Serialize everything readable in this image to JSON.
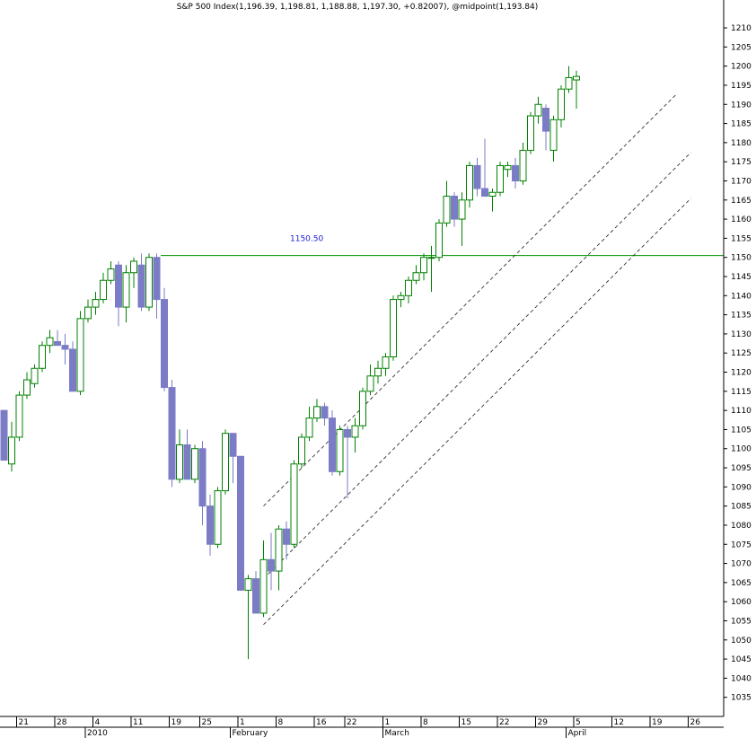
{
  "chart_data": {
    "type": "candlestick",
    "title": "S&P 500 Index(1,196.39, 1,198.81, 1,188.88, 1,197.30, +0.82007), @midpoint(1,193.84)",
    "ylim": [
      1030,
      1214
    ],
    "y_ticks": [
      1035,
      1040,
      1045,
      1050,
      1055,
      1060,
      1065,
      1070,
      1075,
      1080,
      1085,
      1090,
      1095,
      1100,
      1105,
      1110,
      1115,
      1120,
      1125,
      1130,
      1135,
      1140,
      1145,
      1150,
      1155,
      1160,
      1165,
      1170,
      1175,
      1180,
      1185,
      1190,
      1195,
      1200,
      1205,
      1210
    ],
    "grid": false,
    "x_tick_labels": [
      "21",
      "28",
      "4",
      "11",
      "19",
      "25",
      "1",
      "8",
      "16",
      "22",
      "1",
      "8",
      "15",
      "22",
      "29",
      "5",
      "12",
      "19",
      "26"
    ],
    "x_tick_slots": [
      2,
      7,
      12,
      17,
      22,
      26,
      31,
      36,
      41,
      45,
      50,
      55,
      60,
      65,
      70,
      75,
      80,
      85,
      90
    ],
    "month_labels": [
      {
        "label": "2010",
        "slot": 11
      },
      {
        "label": "February",
        "slot": 30
      },
      {
        "label": "March",
        "slot": 50
      },
      {
        "label": "April",
        "slot": 74
      }
    ],
    "horizontal_line": {
      "value": 1150.5,
      "label": "1150.50",
      "from_slot": 21
    },
    "channel": {
      "slope_per_slot": 1.99,
      "lines": [
        {
          "slot0": 34,
          "value0": 1085,
          "end_slot": 88
        },
        {
          "slot0": 34,
          "value0": 1066,
          "end_slot": 90
        },
        {
          "slot0": 34,
          "value0": 1054,
          "end_slot": 90
        }
      ]
    },
    "candles": [
      {
        "slot": 0,
        "open": 1110,
        "high": 1110,
        "low": 1097,
        "close": 1097
      },
      {
        "slot": 1,
        "open": 1096,
        "high": 1107,
        "low": 1094,
        "close": 1103
      },
      {
        "slot": 2,
        "open": 1103,
        "high": 1115,
        "low": 1102,
        "close": 1114
      },
      {
        "slot": 3,
        "open": 1114,
        "high": 1120,
        "low": 1113,
        "close": 1118
      },
      {
        "slot": 4,
        "open": 1117,
        "high": 1122,
        "low": 1116,
        "close": 1121
      },
      {
        "slot": 5,
        "open": 1121,
        "high": 1128,
        "low": 1120,
        "close": 1127
      },
      {
        "slot": 6,
        "open": 1127,
        "high": 1131,
        "low": 1125,
        "close": 1129
      },
      {
        "slot": 7,
        "open": 1128,
        "high": 1131,
        "low": 1127,
        "close": 1127
      },
      {
        "slot": 8,
        "open": 1127,
        "high": 1130,
        "low": 1122,
        "close": 1126
      },
      {
        "slot": 9,
        "open": 1126,
        "high": 1128,
        "low": 1115,
        "close": 1115
      },
      {
        "slot": 10,
        "open": 1115,
        "high": 1136,
        "low": 1114,
        "close": 1134
      },
      {
        "slot": 11,
        "open": 1134,
        "high": 1139,
        "low": 1133,
        "close": 1137
      },
      {
        "slot": 12,
        "open": 1137,
        "high": 1141,
        "low": 1135,
        "close": 1139
      },
      {
        "slot": 13,
        "open": 1139,
        "high": 1146,
        "low": 1138,
        "close": 1144
      },
      {
        "slot": 14,
        "open": 1144,
        "high": 1149,
        "low": 1143,
        "close": 1147
      },
      {
        "slot": 15,
        "open": 1148,
        "high": 1149,
        "low": 1132,
        "close": 1137
      },
      {
        "slot": 16,
        "open": 1137,
        "high": 1148,
        "low": 1133,
        "close": 1146
      },
      {
        "slot": 17,
        "open": 1146,
        "high": 1150,
        "low": 1142,
        "close": 1149
      },
      {
        "slot": 18,
        "open": 1148,
        "high": 1151,
        "low": 1136,
        "close": 1137
      },
      {
        "slot": 19,
        "open": 1137,
        "high": 1151,
        "low": 1136,
        "close": 1150
      },
      {
        "slot": 20,
        "open": 1150,
        "high": 1151,
        "low": 1134,
        "close": 1139
      },
      {
        "slot": 21,
        "open": 1139,
        "high": 1142,
        "low": 1115,
        "close": 1116
      },
      {
        "slot": 22,
        "open": 1116,
        "high": 1118,
        "low": 1090,
        "close": 1092
      },
      {
        "slot": 23,
        "open": 1092,
        "high": 1105,
        "low": 1091,
        "close": 1101
      },
      {
        "slot": 24,
        "open": 1101,
        "high": 1105,
        "low": 1092,
        "close": 1092
      },
      {
        "slot": 25,
        "open": 1092,
        "high": 1101,
        "low": 1091,
        "close": 1100
      },
      {
        "slot": 26,
        "open": 1100,
        "high": 1102,
        "low": 1080,
        "close": 1085
      },
      {
        "slot": 27,
        "open": 1085,
        "high": 1088,
        "low": 1072,
        "close": 1075
      },
      {
        "slot": 28,
        "open": 1075,
        "high": 1090,
        "low": 1074,
        "close": 1089
      },
      {
        "slot": 29,
        "open": 1089,
        "high": 1105,
        "low": 1088,
        "close": 1104
      },
      {
        "slot": 30,
        "open": 1104,
        "high": 1104,
        "low": 1091,
        "close": 1098
      },
      {
        "slot": 31,
        "open": 1098,
        "high": 1098,
        "low": 1063,
        "close": 1063
      },
      {
        "slot": 32,
        "open": 1063,
        "high": 1067,
        "low": 1045,
        "close": 1066
      },
      {
        "slot": 33,
        "open": 1066,
        "high": 1068,
        "low": 1057,
        "close": 1057
      },
      {
        "slot": 34,
        "open": 1057,
        "high": 1076,
        "low": 1056,
        "close": 1071
      },
      {
        "slot": 35,
        "open": 1071,
        "high": 1078,
        "low": 1063,
        "close": 1068
      },
      {
        "slot": 36,
        "open": 1068,
        "high": 1080,
        "low": 1063,
        "close": 1079
      },
      {
        "slot": 37,
        "open": 1079,
        "high": 1081,
        "low": 1071,
        "close": 1075
      },
      {
        "slot": 38,
        "open": 1075,
        "high": 1097,
        "low": 1074,
        "close": 1096
      },
      {
        "slot": 39,
        "open": 1096,
        "high": 1104,
        "low": 1095,
        "close": 1103
      },
      {
        "slot": 40,
        "open": 1103,
        "high": 1111,
        "low": 1102,
        "close": 1108
      },
      {
        "slot": 41,
        "open": 1108,
        "high": 1113,
        "low": 1107,
        "close": 1111
      },
      {
        "slot": 42,
        "open": 1111,
        "high": 1112,
        "low": 1106,
        "close": 1108
      },
      {
        "slot": 43,
        "open": 1108,
        "high": 1110,
        "low": 1093,
        "close": 1094
      },
      {
        "slot": 44,
        "open": 1094,
        "high": 1106,
        "low": 1093,
        "close": 1105
      },
      {
        "slot": 45,
        "open": 1105,
        "high": 1106,
        "low": 1087,
        "close": 1103
      },
      {
        "slot": 46,
        "open": 1103,
        "high": 1108,
        "low": 1099,
        "close": 1106
      },
      {
        "slot": 47,
        "open": 1106,
        "high": 1116,
        "low": 1105,
        "close": 1115
      },
      {
        "slot": 48,
        "open": 1115,
        "high": 1122,
        "low": 1114,
        "close": 1119
      },
      {
        "slot": 49,
        "open": 1119,
        "high": 1123,
        "low": 1117,
        "close": 1121
      },
      {
        "slot": 50,
        "open": 1121,
        "high": 1125,
        "low": 1119,
        "close": 1124
      },
      {
        "slot": 51,
        "open": 1124,
        "high": 1140,
        "low": 1123,
        "close": 1139
      },
      {
        "slot": 52,
        "open": 1139,
        "high": 1141,
        "low": 1137,
        "close": 1140
      },
      {
        "slot": 53,
        "open": 1140,
        "high": 1145,
        "low": 1138,
        "close": 1144
      },
      {
        "slot": 54,
        "open": 1144,
        "high": 1148,
        "low": 1143,
        "close": 1146
      },
      {
        "slot": 55,
        "open": 1146,
        "high": 1151,
        "low": 1144,
        "close": 1150
      },
      {
        "slot": 56,
        "open": 1150,
        "high": 1153,
        "low": 1141,
        "close": 1150
      },
      {
        "slot": 57,
        "open": 1150,
        "high": 1160,
        "low": 1149,
        "close": 1159
      },
      {
        "slot": 58,
        "open": 1159,
        "high": 1170,
        "low": 1158,
        "close": 1166
      },
      {
        "slot": 59,
        "open": 1166,
        "high": 1167,
        "low": 1158,
        "close": 1160
      },
      {
        "slot": 60,
        "open": 1160,
        "high": 1167,
        "low": 1153,
        "close": 1165
      },
      {
        "slot": 61,
        "open": 1165,
        "high": 1175,
        "low": 1163,
        "close": 1174
      },
      {
        "slot": 62,
        "open": 1174,
        "high": 1176,
        "low": 1166,
        "close": 1168
      },
      {
        "slot": 63,
        "open": 1168,
        "high": 1181,
        "low": 1166,
        "close": 1166
      },
      {
        "slot": 64,
        "open": 1166,
        "high": 1168,
        "low": 1162,
        "close": 1167
      },
      {
        "slot": 65,
        "open": 1167,
        "high": 1175,
        "low": 1166,
        "close": 1174
      },
      {
        "slot": 66,
        "open": 1173,
        "high": 1175,
        "low": 1171,
        "close": 1174
      },
      {
        "slot": 67,
        "open": 1174,
        "high": 1176,
        "low": 1168,
        "close": 1170
      },
      {
        "slot": 68,
        "open": 1170,
        "high": 1180,
        "low": 1169,
        "close": 1178
      },
      {
        "slot": 69,
        "open": 1178,
        "high": 1188,
        "low": 1177,
        "close": 1187
      },
      {
        "slot": 70,
        "open": 1187,
        "high": 1192,
        "low": 1185,
        "close": 1190
      },
      {
        "slot": 71,
        "open": 1189,
        "high": 1190,
        "low": 1178,
        "close": 1183
      },
      {
        "slot": 72,
        "open": 1178,
        "high": 1187,
        "low": 1175,
        "close": 1186
      },
      {
        "slot": 73,
        "open": 1186,
        "high": 1195,
        "low": 1184,
        "close": 1194
      },
      {
        "slot": 74,
        "open": 1194,
        "high": 1200,
        "low": 1193,
        "close": 1197
      },
      {
        "slot": 75,
        "open": 1196.39,
        "high": 1198.81,
        "low": 1188.88,
        "close": 1197.3
      }
    ],
    "colors": {
      "up": "#008000",
      "down_fill": "#7b7bc6",
      "down_wick": "#7b7bc6",
      "line": "#009000",
      "channel": "#333333",
      "annotation": "#1a1ad6"
    }
  }
}
